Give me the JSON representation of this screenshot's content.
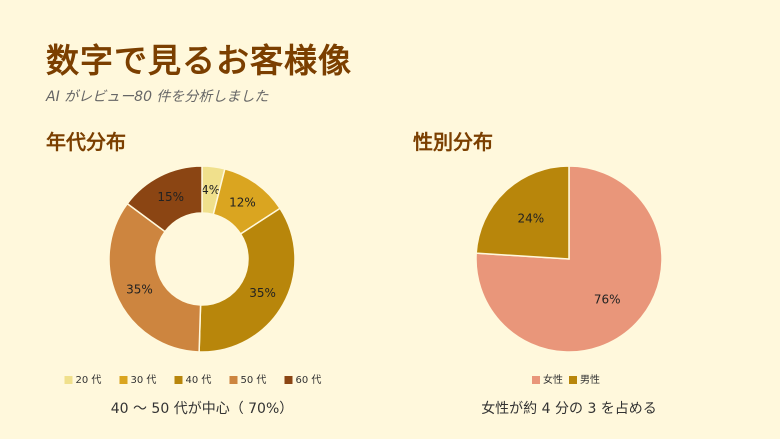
{
  "header": {
    "title": "数字で見るお客様像",
    "subtitle": "AI がレビュー80 件を分析しました"
  },
  "colors": {
    "background": "#fff8dc",
    "heading": "#7b3f00"
  },
  "chart_data": [
    {
      "type": "pie",
      "variant": "donut",
      "title": "年代分布",
      "categories": [
        "20 代",
        "30 代",
        "40 代",
        "50 代",
        "60 代"
      ],
      "values": [
        4,
        12,
        35,
        35,
        15
      ],
      "labels": [
        "4%",
        "12%",
        "35%",
        "35%",
        "15%"
      ],
      "colors": [
        "#f0e08c",
        "#daa520",
        "#b8860b",
        "#cd853f",
        "#8b4513"
      ],
      "legend_position": "bottom",
      "caption": "40 〜 50 代が中心（ 70%）"
    },
    {
      "type": "pie",
      "title": "性別分布",
      "categories": [
        "女性",
        "男性"
      ],
      "values": [
        76,
        24
      ],
      "labels": [
        "76%",
        "24%"
      ],
      "colors": [
        "#e9967a",
        "#b8860b"
      ],
      "legend_position": "bottom",
      "caption": "女性が約 4 分の 3 を占める"
    }
  ]
}
